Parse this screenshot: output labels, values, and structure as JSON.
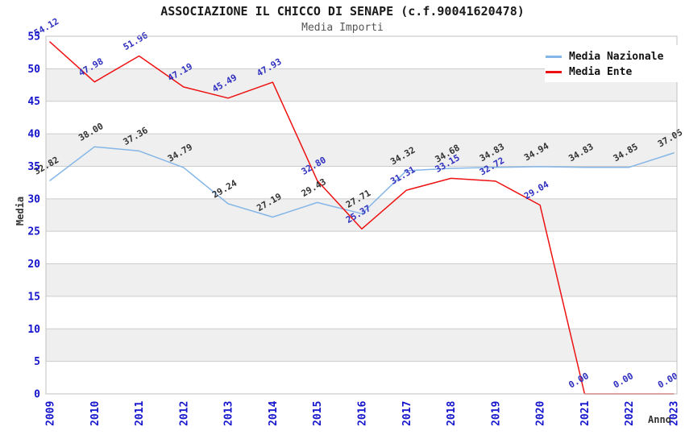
{
  "page": {
    "title": "ASSOCIAZIONE IL CHICCO DI SENAPE (c.f.90041620478)",
    "subtitle": "Media Importi"
  },
  "chart_data": {
    "type": "line",
    "title": "ASSOCIAZIONE IL CHICCO DI SENAPE (c.f.90041620478)",
    "subtitle": "Media Importi",
    "xlabel": "Anno",
    "ylabel": "Media",
    "ylim": [
      0,
      55
    ],
    "ytick_step": 5,
    "grid": "horizontal",
    "legend_position": "top-right",
    "categories": [
      "2009",
      "2010",
      "2011",
      "2012",
      "2013",
      "2014",
      "2015",
      "2016",
      "2017",
      "2018",
      "2019",
      "2020",
      "2021",
      "2022",
      "2023"
    ],
    "series": [
      {
        "name": "Media Nazionale",
        "color": "#84b6e7",
        "label_color": "#333333",
        "values": [
          32.82,
          38.0,
          37.36,
          34.79,
          29.24,
          27.19,
          29.43,
          27.71,
          34.32,
          34.68,
          34.83,
          34.94,
          34.83,
          34.85,
          37.05
        ]
      },
      {
        "name": "Media Ente",
        "color": "#ee1111",
        "label_color": "#3030c0",
        "values": [
          54.12,
          47.98,
          51.96,
          47.19,
          45.49,
          47.93,
          32.8,
          25.37,
          31.31,
          33.15,
          32.72,
          29.04,
          0.0,
          0.0,
          0.0
        ]
      }
    ]
  },
  "colors": {
    "axis_tick": "#1414cc",
    "grid_line": "#cccccc",
    "plot_border": "#c0c0c0",
    "band_fill": "#efefef",
    "legend_bg": "#ffffff"
  }
}
